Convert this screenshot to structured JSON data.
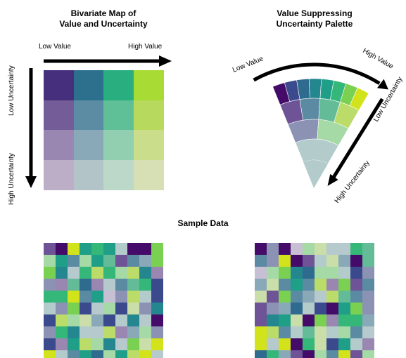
{
  "left_panel": {
    "title_line1": "Bivariate Map of",
    "title_line2": "Value and Uncertainty",
    "x_low": "Low Value",
    "x_high": "High Value",
    "y_low": "Low Uncertainty",
    "y_high": "High Uncertainty",
    "grid_colors": [
      [
        "#46307e",
        "#2d708e",
        "#29af7f",
        "#a8db34"
      ],
      [
        "#735c98",
        "#5b8ca4",
        "#5fbf96",
        "#b7d95e"
      ],
      [
        "#9986b1",
        "#89a8b8",
        "#92ceb0",
        "#c9dd8a"
      ],
      [
        "#bcaec7",
        "#b3c4c9",
        "#bcd8c8",
        "#d6e0b4"
      ]
    ]
  },
  "right_panel": {
    "title_line1": "Value Suppressing",
    "title_line2": "Uncertainty Palette",
    "arc_low": "Low Value",
    "arc_high": "High Value",
    "radial_low": "Low Uncertainty",
    "radial_high": "High Uncertainty",
    "vsup_rings": [
      [
        "#440c68",
        "#3b4a8c",
        "#2e6b8e",
        "#24868e",
        "#1f9f88",
        "#35b779",
        "#7ad151",
        "#d2e21b"
      ],
      [
        "#6e5496",
        "#5b8aa3",
        "#63bb98",
        "#bcdc6a"
      ],
      [
        "#8c92b3",
        "#a5d9a6"
      ],
      [
        "#b3cccb"
      ]
    ]
  },
  "sample_title": "Sample Data",
  "palette_colors": [
    "#440c68",
    "#3b4a8c",
    "#2e6b8e",
    "#24868e",
    "#1f9f88",
    "#35b779",
    "#7ad151",
    "#d2e21b",
    "#6e5496",
    "#5b8aa3",
    "#63bb98",
    "#bcdc6a",
    "#8c92b3",
    "#a5d9a6",
    "#b3cccb",
    "#c7bfd3",
    "#b6c9cc",
    "#c9dea8",
    "#9986b1",
    "#89a8b8"
  ]
}
